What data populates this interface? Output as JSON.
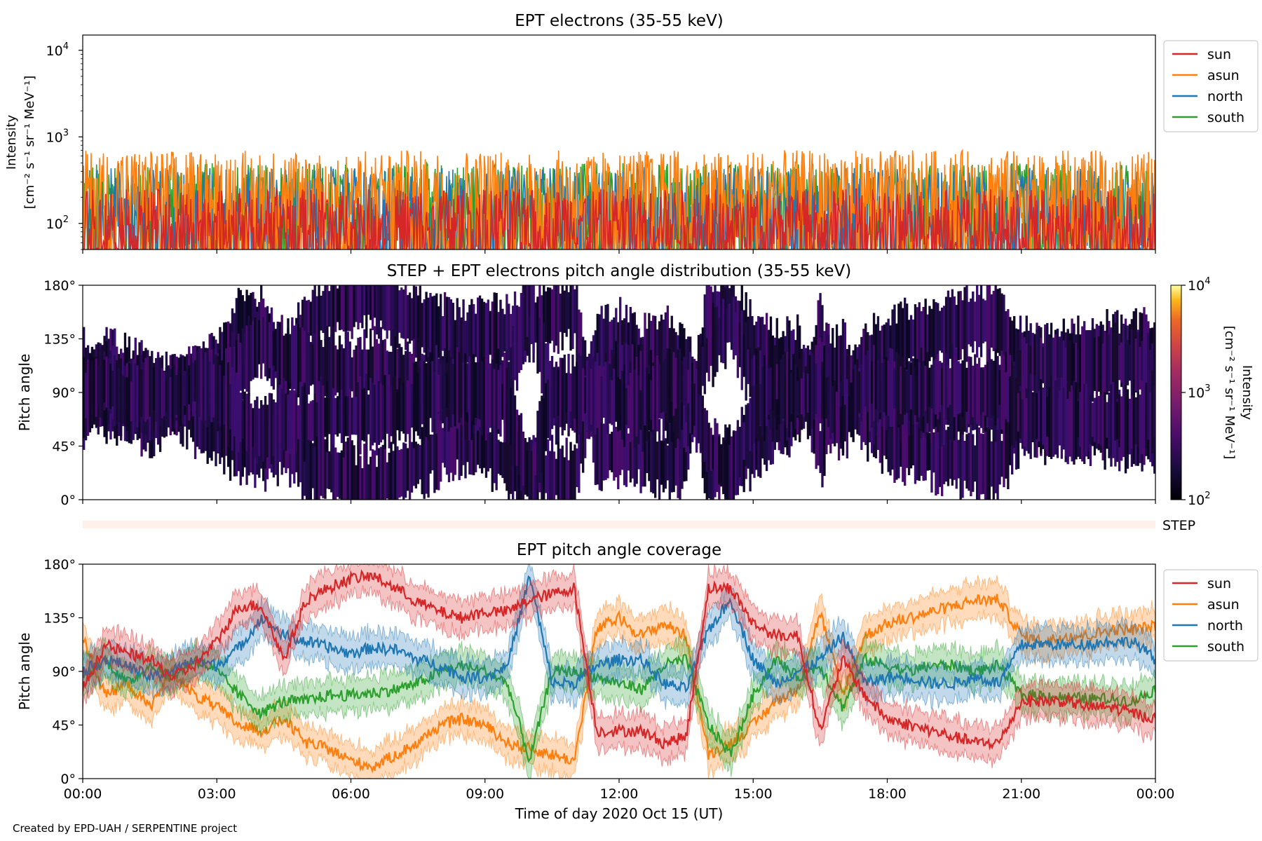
{
  "footer": "Created by EPD-UAH / SERPENTINE project",
  "colors": {
    "sun": "#d62728",
    "asun": "#ff7f0e",
    "north": "#1f77b4",
    "south": "#2ca02c"
  },
  "xaxis": {
    "label": "Time of day 2020 Oct 15 (UT)",
    "ticks": [
      "00:00",
      "03:00",
      "06:00",
      "09:00",
      "12:00",
      "15:00",
      "18:00",
      "21:00",
      "00:00"
    ],
    "range_hours": [
      0,
      24
    ]
  },
  "chart_data": [
    {
      "type": "line",
      "title": "EPT electrons (35-55 keV)",
      "ylabel_line1": "Intensity",
      "ylabel_line2": "[cm⁻² s⁻¹ sr⁻¹ MeV⁻¹]",
      "yscale": "log",
      "ylim": [
        50,
        15000
      ],
      "yticks": [
        {
          "base": "10",
          "exp": "2",
          "value": 100
        },
        {
          "base": "10",
          "exp": "3",
          "value": 1000
        },
        {
          "base": "10",
          "exp": "4",
          "value": 10000
        }
      ],
      "legend_position": "upper-right-outside",
      "series": [
        {
          "name": "sun",
          "typical_range": [
            50,
            250
          ]
        },
        {
          "name": "asun",
          "typical_range": [
            50,
            700
          ]
        },
        {
          "name": "north",
          "typical_range": [
            50,
            450
          ]
        },
        {
          "name": "south",
          "typical_range": [
            50,
            500
          ]
        }
      ]
    },
    {
      "type": "heatmap",
      "title": "STEP + EPT electrons pitch angle distribution (35-55 keV)",
      "ylabel": "Pitch angle",
      "ylim": [
        0,
        180
      ],
      "yticks": [
        "0°",
        "45°",
        "90°",
        "135°",
        "180°"
      ],
      "colorbar": {
        "label": "Intensity",
        "unit": "[cm⁻² s⁻¹ sr⁻¹ MeV⁻¹]",
        "scale": "log",
        "range": [
          100,
          10000
        ],
        "ticks": [
          {
            "base": "10",
            "exp": "2"
          },
          {
            "base": "10",
            "exp": "3"
          },
          {
            "base": "10",
            "exp": "4"
          }
        ],
        "colormap": "inferno"
      }
    },
    {
      "type": "bar",
      "label": "STEP"
    },
    {
      "type": "line",
      "title": "EPT pitch angle coverage",
      "ylabel": "Pitch angle",
      "ylim": [
        0,
        180
      ],
      "yticks": [
        "0°",
        "45°",
        "90°",
        "135°",
        "180°"
      ],
      "legend_position": "upper-right-outside",
      "series": [
        {
          "name": "sun",
          "x": [
            0,
            0.5,
            1,
            1.5,
            2,
            2.5,
            3,
            3.5,
            4,
            4.5,
            5,
            5.5,
            6,
            6.5,
            7,
            7.5,
            8,
            8.5,
            9,
            9.5,
            10,
            10.5,
            11,
            11.5,
            12,
            12.5,
            13,
            13.5,
            14,
            14.5,
            15,
            15.5,
            16,
            16.5,
            17,
            17.5,
            18,
            18.5,
            19,
            19.5,
            20,
            20.5,
            21,
            21.5,
            22,
            22.5,
            23,
            23.5,
            24
          ],
          "y": [
            75,
            112,
            105,
            100,
            85,
            95,
            115,
            145,
            145,
            100,
            150,
            160,
            168,
            170,
            160,
            148,
            140,
            135,
            140,
            140,
            150,
            155,
            160,
            40,
            40,
            40,
            30,
            35,
            160,
            160,
            130,
            120,
            120,
            40,
            100,
            70,
            50,
            45,
            40,
            35,
            30,
            30,
            65,
            65,
            65,
            60,
            60,
            55,
            50
          ]
        },
        {
          "name": "asun",
          "x": [
            0,
            0.5,
            1,
            1.5,
            2,
            2.5,
            3,
            3.5,
            4,
            4.5,
            5,
            5.5,
            6,
            6.5,
            7,
            7.5,
            8,
            8.5,
            9,
            9.5,
            10,
            10.5,
            11,
            11.5,
            12,
            12.5,
            13,
            13.5,
            14,
            14.5,
            15,
            15.5,
            16,
            16.5,
            17,
            17.5,
            18,
            18.5,
            19,
            19.5,
            20,
            20.5,
            21,
            21.5,
            22,
            22.5,
            23,
            23.5,
            24
          ],
          "y": [
            120,
            70,
            80,
            60,
            90,
            70,
            60,
            45,
            40,
            50,
            30,
            25,
            15,
            10,
            20,
            30,
            45,
            50,
            45,
            30,
            25,
            20,
            15,
            125,
            135,
            120,
            130,
            120,
            20,
            30,
            45,
            65,
            75,
            140,
            70,
            120,
            130,
            135,
            140,
            145,
            150,
            150,
            120,
            115,
            120,
            120,
            125,
            125,
            128
          ]
        },
        {
          "name": "north",
          "x": [
            0,
            0.5,
            1,
            1.5,
            2,
            2.5,
            3,
            3.5,
            4,
            4.5,
            5,
            5.5,
            6,
            6.5,
            7,
            7.5,
            8,
            8.5,
            9,
            9.5,
            10,
            10.5,
            11,
            11.5,
            12,
            12.5,
            13,
            13.5,
            14,
            14.5,
            15,
            15.5,
            16,
            16.5,
            17,
            17.5,
            18,
            18.5,
            19,
            19.5,
            20,
            20.5,
            21,
            21.5,
            22,
            22.5,
            23,
            23.5,
            24
          ],
          "y": [
            90,
            100,
            95,
            85,
            90,
            100,
            95,
            110,
            135,
            120,
            115,
            110,
            105,
            110,
            108,
            100,
            95,
            85,
            85,
            95,
            170,
            80,
            80,
            95,
            100,
            100,
            80,
            75,
            125,
            150,
            100,
            80,
            90,
            100,
            120,
            80,
            85,
            85,
            80,
            80,
            85,
            80,
            112,
            113,
            112,
            113,
            115,
            115,
            100
          ]
        },
        {
          "name": "south",
          "x": [
            0,
            0.5,
            1,
            1.5,
            2,
            2.5,
            3,
            3.5,
            4,
            4.5,
            5,
            5.5,
            6,
            6.5,
            7,
            7.5,
            8,
            8.5,
            9,
            9.5,
            10,
            10.5,
            11,
            11.5,
            12,
            12.5,
            13,
            13.5,
            14,
            14.5,
            15,
            15.5,
            16,
            16.5,
            17,
            17.5,
            18,
            18.5,
            19,
            19.5,
            20,
            20.5,
            21,
            21.5,
            22,
            22.5,
            23,
            23.5,
            24
          ],
          "y": [
            85,
            100,
            80,
            95,
            85,
            100,
            90,
            70,
            55,
            65,
            65,
            70,
            70,
            72,
            75,
            80,
            90,
            95,
            90,
            80,
            15,
            90,
            90,
            85,
            80,
            75,
            95,
            100,
            45,
            20,
            70,
            100,
            85,
            95,
            60,
            100,
            95,
            90,
            95,
            95,
            90,
            95,
            70,
            70,
            68,
            67,
            67,
            65,
            75
          ]
        }
      ]
    }
  ]
}
